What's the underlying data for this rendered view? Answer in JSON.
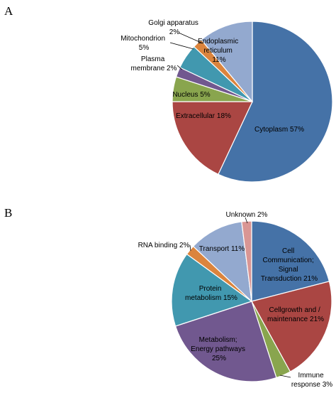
{
  "chart_data": [
    {
      "type": "pie",
      "panel_label": "A",
      "slices": [
        {
          "label": "Cytoplasm 57%",
          "value": 57,
          "color": "#4572a7"
        },
        {
          "label": "Extracellular 18%",
          "value": 18,
          "color": "#aa4643"
        },
        {
          "label": "Nucleus 5%",
          "value": 5,
          "color": "#89a54e"
        },
        {
          "label": "Plasma membrane 2%",
          "value": 2,
          "color": "#71588f"
        },
        {
          "label": "Mitochondrion 5%",
          "value": 5,
          "color": "#4198af"
        },
        {
          "label": "Golgi apparatus 2%",
          "value": 2,
          "color": "#db843d"
        },
        {
          "label": "Endoplasmic reticulum 11%",
          "value": 11,
          "color": "#93a9cf"
        }
      ]
    },
    {
      "type": "pie",
      "panel_label": "B",
      "slices": [
        {
          "label": "Cell Communication; Signal Transduction 21%",
          "value": 21,
          "color": "#4572a7"
        },
        {
          "label": "Cellgrowth and / maintenance 21%",
          "value": 21,
          "color": "#aa4643"
        },
        {
          "label": "Immune response 3%",
          "value": 3,
          "color": "#89a54e"
        },
        {
          "label": "Metabolism; Energy pathways 25%",
          "value": 25,
          "color": "#71588f"
        },
        {
          "label": "Protein metabolism 15%",
          "value": 15,
          "color": "#4198af"
        },
        {
          "label": "RNA binding 2%",
          "value": 2,
          "color": "#db843d"
        },
        {
          "label": "Transport 11%",
          "value": 11,
          "color": "#93a9cf"
        },
        {
          "label": "Unknown 2%",
          "value": 2,
          "color": "#d99694"
        }
      ]
    }
  ]
}
